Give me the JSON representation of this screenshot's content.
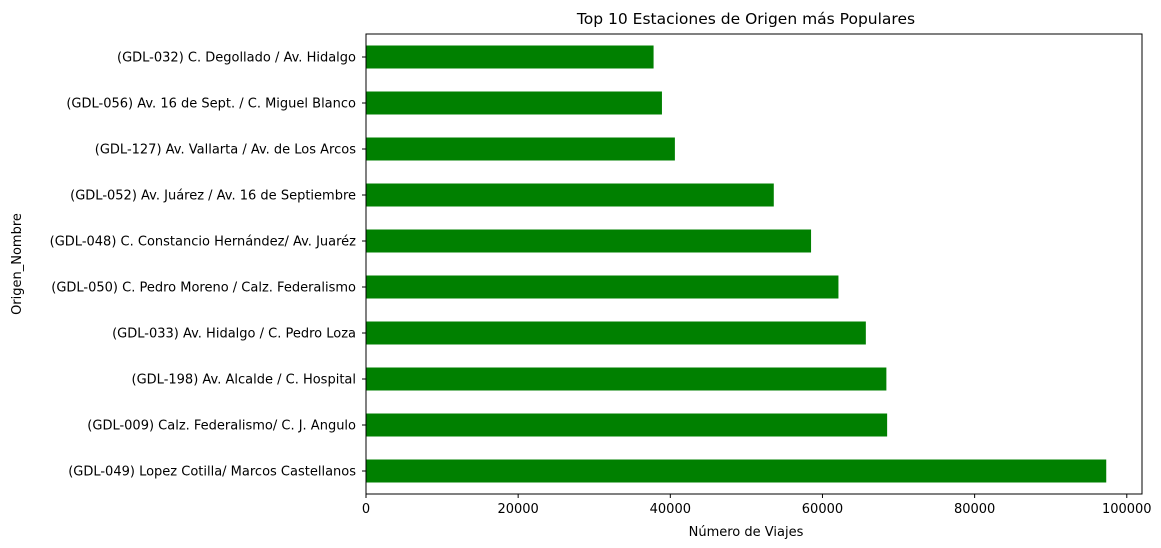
{
  "chart_data": {
    "type": "bar",
    "orientation": "horizontal",
    "title": "Top 10 Estaciones de Origen más Populares",
    "xlabel": "Número de Viajes",
    "ylabel": "Origen_Nombre",
    "xlim": [
      0,
      102000
    ],
    "xticks": [
      0,
      20000,
      40000,
      60000,
      80000,
      100000
    ],
    "xtick_labels": [
      "0",
      "20000",
      "40000",
      "60000",
      "80000",
      "100000"
    ],
    "bar_color": "#008000",
    "categories": [
      "(GDL-032) C. Degollado / Av. Hidalgo",
      "(GDL-056) Av. 16 de Sept. / C. Miguel Blanco",
      "(GDL-127) Av. Vallarta / Av. de Los Arcos",
      "(GDL-052) Av. Juárez / Av. 16 de Septiembre",
      "(GDL-048) C. Constancio Hernández/ Av. Juaréz",
      "(GDL-050) C. Pedro Moreno / Calz. Federalismo",
      "(GDL-033) Av. Hidalgo / C. Pedro Loza",
      "(GDL-198) Av. Alcalde / C. Hospital",
      "(GDL-009) Calz. Federalismo/ C. J. Angulo",
      "(GDL-049) Lopez Cotilla/ Marcos Castellanos"
    ],
    "values": [
      37800,
      38900,
      40600,
      53600,
      58500,
      62100,
      65700,
      68400,
      68500,
      97300
    ],
    "grid": false,
    "legend": false
  }
}
